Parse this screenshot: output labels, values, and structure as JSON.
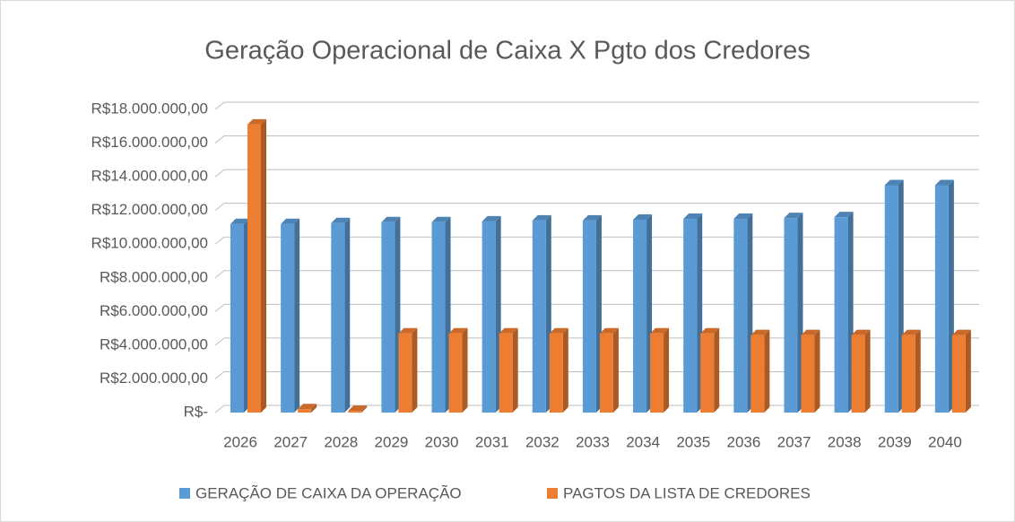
{
  "chart_data": {
    "type": "bar3d",
    "title": "Geração Operacional de Caixa X Pgto dos Credores",
    "categories": [
      "2026",
      "2027",
      "2028",
      "2029",
      "2030",
      "2031",
      "2032",
      "2033",
      "2034",
      "2035",
      "2036",
      "2037",
      "2038",
      "2039",
      "2040"
    ],
    "series": [
      {
        "name": "GERAÇÃO DE CAIXA DA OPERAÇÃO",
        "color": "#5b9bd5",
        "values": [
          11200000,
          11200000,
          11250000,
          11300000,
          11300000,
          11350000,
          11400000,
          11400000,
          11450000,
          11500000,
          11500000,
          11550000,
          11600000,
          13500000,
          13500000
        ]
      },
      {
        "name": "PAGTOS DA LISTA DE CREDORES",
        "color": "#ed7d31",
        "values": [
          17100000,
          200000,
          100000,
          4700000,
          4700000,
          4700000,
          4700000,
          4700000,
          4700000,
          4700000,
          4600000,
          4600000,
          4600000,
          4600000,
          4600000
        ]
      }
    ],
    "ylim": [
      0,
      18000000
    ],
    "yticks": [
      {
        "value": 0,
        "label": "R$-"
      },
      {
        "value": 2000000,
        "label": "R$2.000.000,00"
      },
      {
        "value": 4000000,
        "label": "R$4.000.000,00"
      },
      {
        "value": 6000000,
        "label": "R$6.000.000,00"
      },
      {
        "value": 8000000,
        "label": "R$8.000.000,00"
      },
      {
        "value": 10000000,
        "label": "R$10.000.000,00"
      },
      {
        "value": 12000000,
        "label": "R$12.000.000,00"
      },
      {
        "value": 14000000,
        "label": "R$14.000.000,00"
      },
      {
        "value": 16000000,
        "label": "R$16.000.000,00"
      },
      {
        "value": 18000000,
        "label": "R$18.000.000,00"
      }
    ],
    "grid": true
  }
}
